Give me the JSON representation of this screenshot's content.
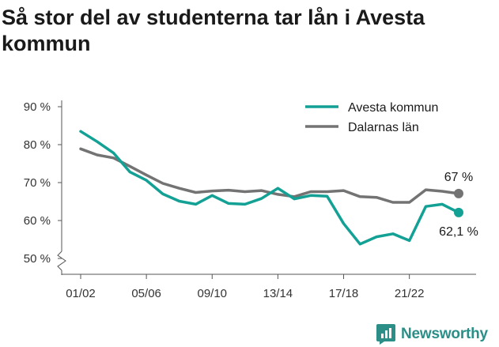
{
  "title": "Så stor del av studenterna tar lån i Avesta kommun",
  "brand": {
    "name": "Newsworthy",
    "icon": "newsworthy-logo-icon",
    "color": "#2b8f87"
  },
  "chart_data": {
    "type": "line",
    "title": "Så stor del av studenterna tar lån i Avesta kommun",
    "x": [
      "01/02",
      "02/03",
      "03/04",
      "04/05",
      "05/06",
      "06/07",
      "07/08",
      "08/09",
      "09/10",
      "10/11",
      "11/12",
      "12/13",
      "13/14",
      "14/15",
      "15/16",
      "16/17",
      "17/18",
      "18/19",
      "19/20",
      "20/21",
      "21/22",
      "22/23",
      "23/24",
      "24/25"
    ],
    "xticks": [
      "01/02",
      "05/06",
      "09/10",
      "13/14",
      "17/18",
      "21/22"
    ],
    "yticks": [
      50,
      60,
      70,
      80,
      90
    ],
    "ytick_labels": [
      "50 %",
      "60 %",
      "70 %",
      "80 %",
      "90 %"
    ],
    "ylim": [
      50,
      90
    ],
    "axis_break": true,
    "grid": false,
    "legend_position": "top-right",
    "series": [
      {
        "name": "Avesta kommun",
        "color": "#14a195",
        "values": [
          83.5,
          80.8,
          77.8,
          72.8,
          70.6,
          67,
          65.1,
          64.3,
          66.6,
          64.5,
          64.3,
          65.8,
          68.5,
          65.7,
          66.6,
          66.4,
          59.2,
          53.8,
          55.7,
          56.5,
          54.7,
          63.7,
          64.3,
          62.1
        ],
        "end_label": "62,1 %"
      },
      {
        "name": "Dalarnas län",
        "color": "#737373",
        "values": [
          78.9,
          77.3,
          76.5,
          74.3,
          72,
          69.8,
          68.5,
          67.4,
          67.8,
          68,
          67.6,
          67.9,
          66.9,
          66.3,
          67.6,
          67.6,
          67.9,
          66.3,
          66.1,
          64.8,
          64.8,
          68.1,
          67.7,
          67.1
        ],
        "end_label": "67 %"
      }
    ]
  }
}
